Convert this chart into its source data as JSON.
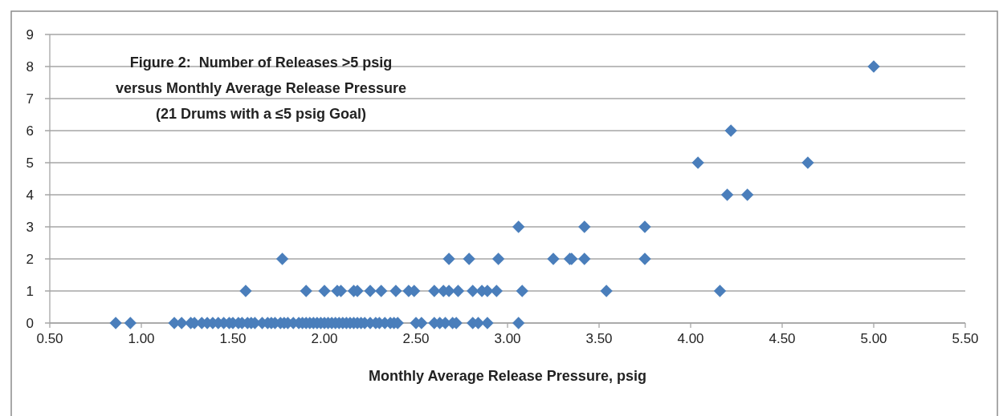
{
  "chart_data": {
    "type": "scatter",
    "title": "Figure 2:  Number of Releases >5 psig\nversus Monthly Average Release Pressure\n(21 Drums with a ≤5 psig Goal)",
    "xlabel": "Monthly Average Release Pressure, psig",
    "xlim": [
      0.5,
      5.5
    ],
    "xticks": [
      {
        "value": 0.5,
        "label": "0.50"
      },
      {
        "value": 1,
        "label": "1.00"
      },
      {
        "value": 1.5,
        "label": "1.50"
      },
      {
        "value": 2,
        "label": "2.00"
      },
      {
        "value": 2.5,
        "label": "2.50"
      },
      {
        "value": 3,
        "label": "3.00"
      },
      {
        "value": 3.5,
        "label": "3.50"
      },
      {
        "value": 4,
        "label": "4.00"
      },
      {
        "value": 4.5,
        "label": "4.50"
      },
      {
        "value": 5,
        "label": "5.00"
      },
      {
        "value": 5.5,
        "label": "5.50"
      }
    ],
    "ylim": [
      0,
      9
    ],
    "yticks": [
      0,
      1,
      2,
      3,
      4,
      5,
      6,
      7,
      8,
      9
    ],
    "grid": "y",
    "marker": "diamond",
    "series": [
      {
        "color": "#4a7ebb",
        "x": [
          0.86,
          0.94,
          1.18,
          1.22,
          1.27,
          1.29,
          1.33,
          1.36,
          1.39,
          1.42,
          1.45,
          1.48,
          1.5,
          1.53,
          1.55,
          1.58,
          1.6,
          1.62,
          1.66,
          1.69,
          1.71,
          1.73,
          1.76,
          1.78,
          1.8,
          1.83,
          1.86,
          1.88,
          1.9,
          1.92,
          1.94,
          1.96,
          1.98,
          2.0,
          2.02,
          2.04,
          2.06,
          2.08,
          2.1,
          2.12,
          2.14,
          2.16,
          2.18,
          2.2,
          2.22,
          2.25,
          2.28,
          2.3,
          2.33,
          2.36,
          2.38,
          2.4,
          2.5,
          2.53,
          2.6,
          2.63,
          2.66,
          2.7,
          2.72,
          2.81,
          2.84,
          2.89,
          3.06,
          1.57,
          1.9,
          2.0,
          2.07,
          2.09,
          2.16,
          2.18,
          2.25,
          2.31,
          2.39,
          2.46,
          2.49,
          2.6,
          2.65,
          2.68,
          2.73,
          2.81,
          2.86,
          2.89,
          2.94,
          3.08,
          3.54,
          4.16,
          1.77,
          2.68,
          2.79,
          2.95,
          3.25,
          3.34,
          3.35,
          3.42,
          3.75,
          3.06,
          3.42,
          3.75,
          4.2,
          4.31,
          4.04,
          4.64,
          4.22,
          5.0
        ],
        "values": [
          0,
          0,
          0,
          0,
          0,
          0,
          0,
          0,
          0,
          0,
          0,
          0,
          0,
          0,
          0,
          0,
          0,
          0,
          0,
          0,
          0,
          0,
          0,
          0,
          0,
          0,
          0,
          0,
          0,
          0,
          0,
          0,
          0,
          0,
          0,
          0,
          0,
          0,
          0,
          0,
          0,
          0,
          0,
          0,
          0,
          0,
          0,
          0,
          0,
          0,
          0,
          0,
          0,
          0,
          0,
          0,
          0,
          0,
          0,
          0,
          0,
          0,
          0,
          1,
          1,
          1,
          1,
          1,
          1,
          1,
          1,
          1,
          1,
          1,
          1,
          1,
          1,
          1,
          1,
          1,
          1,
          1,
          1,
          1,
          1,
          1,
          2,
          2,
          2,
          2,
          2,
          2,
          2,
          2,
          2,
          3,
          3,
          3,
          4,
          4,
          5,
          5,
          6,
          8
        ]
      }
    ]
  }
}
